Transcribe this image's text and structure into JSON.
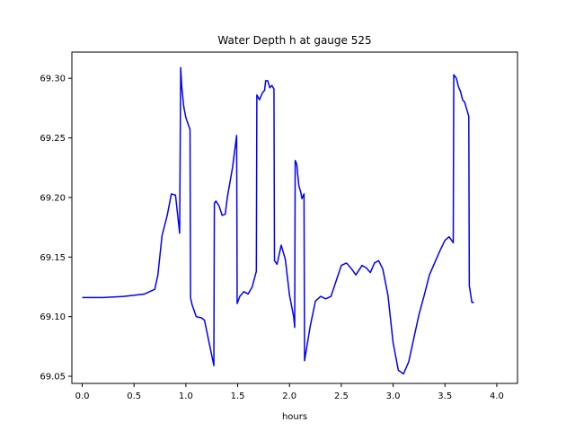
{
  "chart_data": {
    "type": "line",
    "title": "Water Depth h at gauge 525",
    "xlabel": "hours",
    "ylabel": "",
    "xlim": [
      -0.1,
      4.2
    ],
    "ylim": [
      69.044,
      69.322
    ],
    "xticks": [
      0.0,
      0.5,
      1.0,
      1.5,
      2.0,
      2.5,
      3.0,
      3.5,
      4.0
    ],
    "xtick_labels": [
      "0.0",
      "0.5",
      "1.0",
      "1.5",
      "2.0",
      "2.5",
      "3.0",
      "3.5",
      "4.0"
    ],
    "yticks": [
      69.05,
      69.1,
      69.15,
      69.2,
      69.25,
      69.3
    ],
    "ytick_labels": [
      "69.05",
      "69.10",
      "69.15",
      "69.20",
      "69.25",
      "69.30"
    ],
    "grid": false,
    "series": [
      {
        "color": "#0000ff",
        "points": [
          [
            0.0,
            69.116
          ],
          [
            0.2,
            69.116
          ],
          [
            0.4,
            69.117
          ],
          [
            0.6,
            69.119
          ],
          [
            0.7,
            69.123
          ],
          [
            0.73,
            69.135
          ],
          [
            0.77,
            69.168
          ],
          [
            0.82,
            69.185
          ],
          [
            0.86,
            69.203
          ],
          [
            0.9,
            69.202
          ],
          [
            0.94,
            69.17
          ],
          [
            0.95,
            69.309
          ],
          [
            0.96,
            69.293
          ],
          [
            0.98,
            69.276
          ],
          [
            1.0,
            69.267
          ],
          [
            1.04,
            69.257
          ],
          [
            1.045,
            69.116
          ],
          [
            1.06,
            69.11
          ],
          [
            1.1,
            69.1
          ],
          [
            1.15,
            69.099
          ],
          [
            1.18,
            69.097
          ],
          [
            1.22,
            69.08
          ],
          [
            1.27,
            69.059
          ],
          [
            1.275,
            69.195
          ],
          [
            1.29,
            69.197
          ],
          [
            1.32,
            69.193
          ],
          [
            1.35,
            69.185
          ],
          [
            1.38,
            69.186
          ],
          [
            1.4,
            69.2
          ],
          [
            1.45,
            69.225
          ],
          [
            1.49,
            69.252
          ],
          [
            1.495,
            69.111
          ],
          [
            1.52,
            69.117
          ],
          [
            1.56,
            69.121
          ],
          [
            1.6,
            69.119
          ],
          [
            1.64,
            69.125
          ],
          [
            1.68,
            69.138
          ],
          [
            1.685,
            69.286
          ],
          [
            1.71,
            69.282
          ],
          [
            1.74,
            69.288
          ],
          [
            1.76,
            69.29
          ],
          [
            1.77,
            69.298
          ],
          [
            1.79,
            69.298
          ],
          [
            1.81,
            69.292
          ],
          [
            1.83,
            69.294
          ],
          [
            1.85,
            69.291
          ],
          [
            1.855,
            69.147
          ],
          [
            1.88,
            69.144
          ],
          [
            1.92,
            69.16
          ],
          [
            1.96,
            69.148
          ],
          [
            2.0,
            69.118
          ],
          [
            2.04,
            69.1
          ],
          [
            2.05,
            69.091
          ],
          [
            2.055,
            69.231
          ],
          [
            2.07,
            69.228
          ],
          [
            2.09,
            69.21
          ],
          [
            2.11,
            69.204
          ],
          [
            2.12,
            69.199
          ],
          [
            2.14,
            69.203
          ],
          [
            2.145,
            69.063
          ],
          [
            2.2,
            69.092
          ],
          [
            2.25,
            69.113
          ],
          [
            2.3,
            69.117
          ],
          [
            2.35,
            69.115
          ],
          [
            2.4,
            69.117
          ],
          [
            2.45,
            69.13
          ],
          [
            2.5,
            69.143
          ],
          [
            2.55,
            69.145
          ],
          [
            2.6,
            69.14
          ],
          [
            2.64,
            69.135
          ],
          [
            2.7,
            69.143
          ],
          [
            2.74,
            69.141
          ],
          [
            2.78,
            69.137
          ],
          [
            2.82,
            69.145
          ],
          [
            2.86,
            69.147
          ],
          [
            2.9,
            69.14
          ],
          [
            2.95,
            69.118
          ],
          [
            3.0,
            69.078
          ],
          [
            3.05,
            69.055
          ],
          [
            3.1,
            69.052
          ],
          [
            3.15,
            69.062
          ],
          [
            3.2,
            69.082
          ],
          [
            3.25,
            69.102
          ],
          [
            3.3,
            69.118
          ],
          [
            3.35,
            69.135
          ],
          [
            3.4,
            69.145
          ],
          [
            3.45,
            69.155
          ],
          [
            3.5,
            69.164
          ],
          [
            3.54,
            69.167
          ],
          [
            3.58,
            69.162
          ],
          [
            3.585,
            69.303
          ],
          [
            3.61,
            69.3
          ],
          [
            3.63,
            69.293
          ],
          [
            3.65,
            69.289
          ],
          [
            3.67,
            69.282
          ],
          [
            3.69,
            69.28
          ],
          [
            3.71,
            69.274
          ],
          [
            3.73,
            69.268
          ],
          [
            3.735,
            69.126
          ],
          [
            3.76,
            69.112
          ],
          [
            3.78,
            69.112
          ]
        ]
      }
    ]
  }
}
